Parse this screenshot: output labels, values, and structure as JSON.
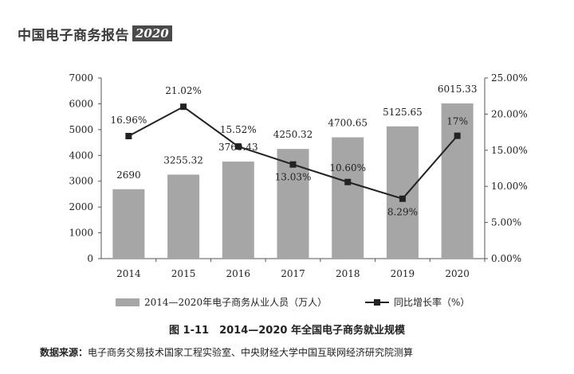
{
  "header": {
    "title": "中国电子商务报告",
    "year": "2020"
  },
  "chart_data": {
    "type": "bar",
    "categories": [
      "2014",
      "2015",
      "2016",
      "2017",
      "2018",
      "2019",
      "2020"
    ],
    "series": [
      {
        "name": "2014—2020年电子商务从业人员（万人）",
        "kind": "bar",
        "axis": "left",
        "values": [
          2690,
          3255.32,
          3760.43,
          4250.32,
          4700.65,
          5125.65,
          6015.33
        ],
        "labels": [
          "2690",
          "3255.32",
          "3760.43",
          "4250.32",
          "4700.65",
          "5125.65",
          "6015.33"
        ]
      },
      {
        "name": "同比增长率（%）",
        "kind": "line",
        "axis": "right",
        "values": [
          16.96,
          21.02,
          15.52,
          13.03,
          10.6,
          8.29,
          17
        ],
        "labels": [
          "16.96%",
          "21.02%",
          "15.52%",
          "13.03%",
          "10.60%",
          "8.29%",
          "17%"
        ]
      }
    ],
    "y_left": {
      "lim": [
        0,
        7000
      ],
      "ticks": [
        "0",
        "1000",
        "2000",
        "3000",
        "4000",
        "5000",
        "6000",
        "7000"
      ]
    },
    "y_right": {
      "lim": [
        0,
        25
      ],
      "ticks": [
        "0.00%",
        "5.00%",
        "10.00%",
        "15.00%",
        "20.00%",
        "25.00%"
      ]
    },
    "grid": false,
    "legend": "bottom",
    "colors": {
      "bar": "#a6a6a6",
      "line": "#222222"
    }
  },
  "caption": "图 1-11　2014—2020 年全国电子商务就业规模",
  "source": {
    "label": "数据来源：",
    "text": "电子商务交易技术国家工程实验室、中央财经大学中国互联网经济研究院测算"
  }
}
